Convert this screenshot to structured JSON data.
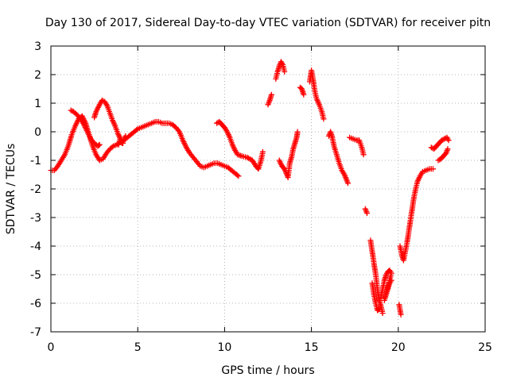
{
  "chart_data": {
    "type": "scatter",
    "title": "Day 130 of 2017, Sidereal Day-to-day VTEC variation (SDTVAR) for receiver pitn",
    "xlabel": "GPS time / hours",
    "ylabel": "SDTVAR / TECUs",
    "xlim": [
      0,
      25
    ],
    "ylim": [
      -7,
      3
    ],
    "xticks": [
      0,
      5,
      10,
      15,
      20,
      25
    ],
    "yticks": [
      -7,
      -6,
      -5,
      -4,
      -3,
      -2,
      -1,
      0,
      1,
      2,
      3
    ],
    "grid": true,
    "marker": "+",
    "color": "#ff0000",
    "segments": [
      [
        [
          0.0,
          -1.35
        ],
        [
          0.2,
          -1.35
        ],
        [
          0.4,
          -1.2
        ],
        [
          0.6,
          -1.0
        ],
        [
          0.8,
          -0.8
        ],
        [
          1.0,
          -0.5
        ],
        [
          1.2,
          -0.1
        ],
        [
          1.4,
          0.2
        ],
        [
          1.6,
          0.45
        ],
        [
          1.8,
          0.55
        ],
        [
          2.0,
          0.3
        ],
        [
          2.2,
          -0.1
        ],
        [
          2.4,
          -0.5
        ],
        [
          2.6,
          -0.8
        ],
        [
          2.8,
          -1.0
        ],
        [
          3.0,
          -0.95
        ],
        [
          3.2,
          -0.75
        ],
        [
          3.4,
          -0.6
        ],
        [
          3.6,
          -0.5
        ],
        [
          3.8,
          -0.45
        ],
        [
          4.0,
          -0.35
        ],
        [
          4.2,
          -0.3
        ],
        [
          4.4,
          -0.2
        ],
        [
          4.6,
          -0.1
        ],
        [
          4.8,
          0.0
        ],
        [
          5.0,
          0.1
        ],
        [
          5.2,
          0.15
        ],
        [
          5.4,
          0.2
        ],
        [
          5.6,
          0.25
        ],
        [
          5.8,
          0.3
        ],
        [
          6.0,
          0.35
        ],
        [
          6.2,
          0.35
        ],
        [
          6.4,
          0.3
        ],
        [
          6.6,
          0.3
        ],
        [
          6.8,
          0.3
        ],
        [
          7.0,
          0.25
        ],
        [
          7.2,
          0.15
        ],
        [
          7.4,
          0.0
        ],
        [
          7.6,
          -0.3
        ],
        [
          7.8,
          -0.55
        ],
        [
          8.0,
          -0.75
        ],
        [
          8.2,
          -0.9
        ],
        [
          8.4,
          -1.05
        ],
        [
          8.6,
          -1.2
        ],
        [
          8.8,
          -1.25
        ],
        [
          9.0,
          -1.2
        ],
        [
          9.2,
          -1.15
        ],
        [
          9.4,
          -1.1
        ],
        [
          9.6,
          -1.1
        ],
        [
          9.8,
          -1.15
        ],
        [
          10.0,
          -1.2
        ],
        [
          10.2,
          -1.25
        ],
        [
          10.4,
          -1.35
        ],
        [
          10.6,
          -1.45
        ],
        [
          10.8,
          -1.55
        ]
      ],
      [
        [
          1.15,
          0.75
        ],
        [
          1.3,
          0.7
        ],
        [
          1.5,
          0.6
        ],
        [
          1.7,
          0.45
        ],
        [
          1.9,
          0.25
        ],
        [
          2.1,
          0.0
        ],
        [
          2.3,
          -0.25
        ],
        [
          2.5,
          -0.4
        ],
        [
          2.7,
          -0.5
        ],
        [
          2.8,
          -0.45
        ]
      ],
      [
        [
          2.5,
          0.5
        ],
        [
          2.6,
          0.7
        ],
        [
          2.8,
          0.95
        ],
        [
          2.95,
          1.1
        ],
        [
          3.1,
          1.05
        ],
        [
          3.25,
          0.9
        ],
        [
          3.4,
          0.65
        ],
        [
          3.55,
          0.4
        ],
        [
          3.7,
          0.2
        ],
        [
          3.85,
          -0.05
        ],
        [
          4.0,
          -0.25
        ],
        [
          4.15,
          -0.4
        ]
      ],
      [
        [
          3.9,
          -0.45
        ],
        [
          4.0,
          -0.2
        ],
        [
          4.1,
          -0.4
        ],
        [
          4.3,
          -0.15
        ]
      ],
      [
        [
          9.55,
          0.3
        ],
        [
          9.7,
          0.35
        ],
        [
          9.85,
          0.25
        ],
        [
          10.0,
          0.15
        ],
        [
          10.15,
          0.0
        ],
        [
          10.3,
          -0.2
        ],
        [
          10.45,
          -0.45
        ],
        [
          10.6,
          -0.65
        ],
        [
          10.75,
          -0.8
        ],
        [
          11.0,
          -0.85
        ],
        [
          11.3,
          -0.9
        ],
        [
          11.6,
          -1.0
        ],
        [
          11.8,
          -1.2
        ],
        [
          11.95,
          -1.3
        ],
        [
          12.1,
          -1.0
        ],
        [
          12.2,
          -0.7
        ]
      ],
      [
        [
          12.5,
          0.95
        ],
        [
          12.6,
          1.1
        ],
        [
          12.7,
          1.3
        ]
      ],
      [
        [
          12.95,
          1.85
        ],
        [
          13.05,
          2.1
        ],
        [
          13.15,
          2.3
        ],
        [
          13.25,
          2.45
        ],
        [
          13.35,
          2.35
        ],
        [
          13.45,
          2.1
        ]
      ],
      [
        [
          13.15,
          -1.0
        ],
        [
          13.3,
          -1.2
        ],
        [
          13.45,
          -1.3
        ],
        [
          13.55,
          -1.45
        ],
        [
          13.65,
          -1.6
        ],
        [
          13.75,
          -1.1
        ],
        [
          13.85,
          -0.9
        ],
        [
          13.95,
          -0.6
        ],
        [
          14.05,
          -0.4
        ],
        [
          14.15,
          -0.2
        ],
        [
          14.2,
          0.0
        ]
      ],
      [
        [
          14.35,
          1.55
        ],
        [
          14.45,
          1.5
        ],
        [
          14.55,
          1.3
        ]
      ],
      [
        [
          14.9,
          1.75
        ],
        [
          15.0,
          2.15
        ],
        [
          15.1,
          1.8
        ],
        [
          15.2,
          1.4
        ],
        [
          15.3,
          1.15
        ],
        [
          15.45,
          0.95
        ],
        [
          15.6,
          0.7
        ],
        [
          15.7,
          0.45
        ]
      ],
      [
        [
          16.0,
          -0.15
        ],
        [
          16.1,
          0.0
        ],
        [
          16.2,
          -0.2
        ],
        [
          16.3,
          -0.5
        ],
        [
          16.45,
          -0.8
        ],
        [
          16.6,
          -1.1
        ],
        [
          16.75,
          -1.35
        ],
        [
          16.9,
          -1.5
        ],
        [
          17.0,
          -1.65
        ],
        [
          17.1,
          -1.8
        ]
      ],
      [
        [
          17.2,
          -0.2
        ],
        [
          17.4,
          -0.25
        ],
        [
          17.6,
          -0.3
        ],
        [
          17.75,
          -0.3
        ],
        [
          17.9,
          -0.55
        ],
        [
          18.0,
          -0.8
        ]
      ],
      [
        [
          18.1,
          -2.7
        ],
        [
          18.2,
          -2.85
        ]
      ],
      [
        [
          18.4,
          -3.8
        ],
        [
          18.5,
          -4.2
        ],
        [
          18.6,
          -4.6
        ],
        [
          18.7,
          -5.0
        ],
        [
          18.8,
          -5.5
        ],
        [
          18.9,
          -5.9
        ],
        [
          19.0,
          -6.1
        ],
        [
          19.1,
          -6.35
        ]
      ],
      [
        [
          18.5,
          -5.3
        ],
        [
          18.6,
          -5.7
        ],
        [
          18.7,
          -6.0
        ],
        [
          18.8,
          -6.25
        ],
        [
          18.9,
          -6.2
        ]
      ],
      [
        [
          19.0,
          -5.8
        ],
        [
          19.1,
          -5.5
        ],
        [
          19.2,
          -5.2
        ],
        [
          19.3,
          -5.0
        ],
        [
          19.4,
          -4.9
        ],
        [
          19.5,
          -4.85
        ],
        [
          19.6,
          -4.95
        ],
        [
          19.2,
          -5.9
        ],
        [
          19.35,
          -5.6
        ],
        [
          19.5,
          -5.3
        ],
        [
          19.6,
          -5.2
        ]
      ],
      [
        [
          20.05,
          -6.05
        ],
        [
          20.15,
          -6.4
        ]
      ],
      [
        [
          20.1,
          -4.0
        ],
        [
          20.2,
          -4.3
        ],
        [
          20.3,
          -4.5
        ],
        [
          20.4,
          -4.2
        ],
        [
          20.5,
          -3.9
        ],
        [
          20.6,
          -3.5
        ],
        [
          20.7,
          -3.1
        ],
        [
          20.8,
          -2.7
        ],
        [
          20.9,
          -2.3
        ],
        [
          21.0,
          -2.0
        ],
        [
          21.1,
          -1.75
        ],
        [
          21.25,
          -1.55
        ],
        [
          21.4,
          -1.4
        ],
        [
          21.6,
          -1.35
        ],
        [
          21.8,
          -1.3
        ],
        [
          22.0,
          -1.3
        ]
      ],
      [
        [
          21.9,
          -0.55
        ],
        [
          22.05,
          -0.6
        ],
        [
          22.2,
          -0.5
        ],
        [
          22.35,
          -0.4
        ],
        [
          22.5,
          -0.3
        ],
        [
          22.65,
          -0.25
        ],
        [
          22.8,
          -0.2
        ],
        [
          22.9,
          -0.3
        ]
      ],
      [
        [
          22.3,
          -1.0
        ],
        [
          22.45,
          -0.95
        ],
        [
          22.6,
          -0.85
        ],
        [
          22.75,
          -0.75
        ],
        [
          22.85,
          -0.6
        ]
      ]
    ]
  }
}
